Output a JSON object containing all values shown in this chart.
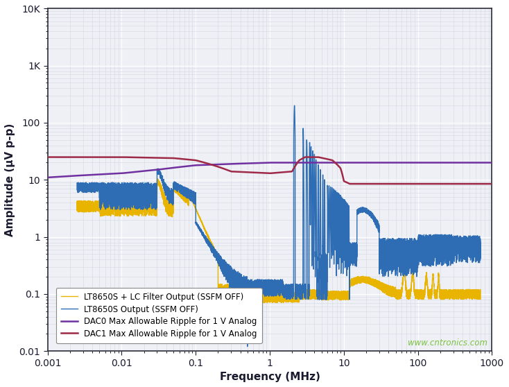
{
  "xlabel": "Frequency (MHz)",
  "ylabel": "Amplitude (μV p-p)",
  "xlim": [
    0.001,
    1000
  ],
  "ylim": [
    0.01,
    10000
  ],
  "background_color": "#ffffff",
  "plot_bg_color": "#eef0f5",
  "grid_major_color": "#ffffff",
  "grid_minor_color": "#d8dce8",
  "legend": [
    {
      "label": "LT8650S Output (SSFM OFF)",
      "color": "#2e6db4",
      "lw": 1.0
    },
    {
      "label": "LT8650S + LC Filter Output (SSFM OFF)",
      "color": "#e8b400",
      "lw": 1.0
    },
    {
      "label": "DAC0 Max Allowable Ripple for 1 V Analog",
      "color": "#7030a0",
      "lw": 1.8
    },
    {
      "label": "DAC1 Max Allowable Ripple for 1 V Analog",
      "color": "#9e2a47",
      "lw": 1.8
    }
  ],
  "watermark": "www.cntronics.com",
  "watermark_color": "#7dc242",
  "axis_label_color": "#1a1a2e",
  "tick_label_color": "#1a1a2e"
}
